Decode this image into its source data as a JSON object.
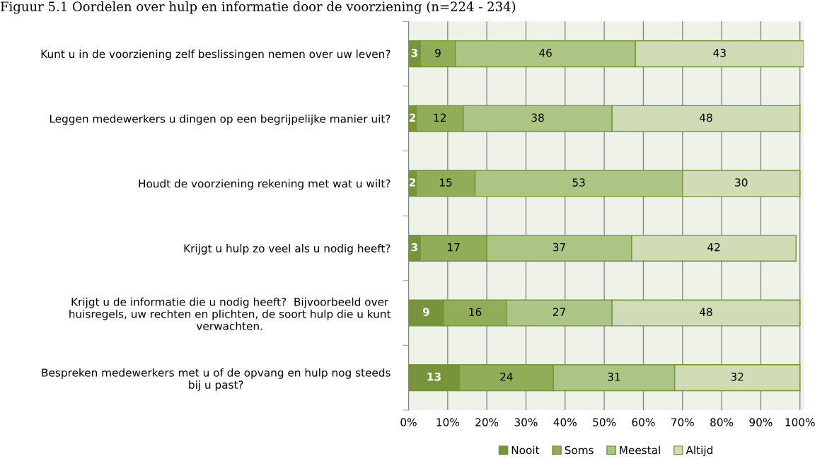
{
  "chart_data": {
    "type": "bar",
    "orientation": "horizontal",
    "stacked": true,
    "data_labels": true,
    "title": "Figuur 5.1 Oordelen over hulp en informatie door de voorziening (n=224 - 234)",
    "categories": [
      "Kunt u in de voorziening zelf beslissingen nemen over uw leven?",
      "Leggen medewerkers u dingen op een begrijpelijke manier uit?",
      "Houdt de voorziening rekening met wat u wilt?",
      "Krijgt u hulp zo veel als u nodig heeft?",
      "Krijgt u de informatie die u nodig heeft?  Bijvoorbeeld over\nhuisregels, uw rechten en plichten, de soort hulp die u kunt\nverwachten.",
      "Bespreken medewerkers met u of de opvang en hulp nog steeds\nbij u past?"
    ],
    "series": [
      {
        "name": "Nooit",
        "color": "#77933c",
        "values": [
          3,
          2,
          2,
          3,
          9,
          13
        ]
      },
      {
        "name": "Soms",
        "color": "#92ad58",
        "values": [
          9,
          12,
          15,
          17,
          16,
          24
        ]
      },
      {
        "name": "Meestal",
        "color": "#adc584",
        "values": [
          46,
          38,
          53,
          37,
          27,
          31
        ]
      },
      {
        "name": "Altijd",
        "color": "#d0dcb6",
        "values": [
          43,
          48,
          30,
          42,
          48,
          32
        ]
      }
    ],
    "xlim": [
      0,
      101
    ],
    "xticks": [
      {
        "value": 0,
        "label": "0%"
      },
      {
        "value": 10,
        "label": "10%"
      },
      {
        "value": 20,
        "label": "20%"
      },
      {
        "value": 30,
        "label": "30%"
      },
      {
        "value": 40,
        "label": "40%"
      },
      {
        "value": 50,
        "label": "50%"
      },
      {
        "value": 60,
        "label": "60%"
      },
      {
        "value": 70,
        "label": "70%"
      },
      {
        "value": 80,
        "label": "80%"
      },
      {
        "value": 90,
        "label": "90%"
      },
      {
        "value": 100,
        "label": "100%"
      }
    ],
    "grid": "x",
    "legend": "bottom"
  }
}
